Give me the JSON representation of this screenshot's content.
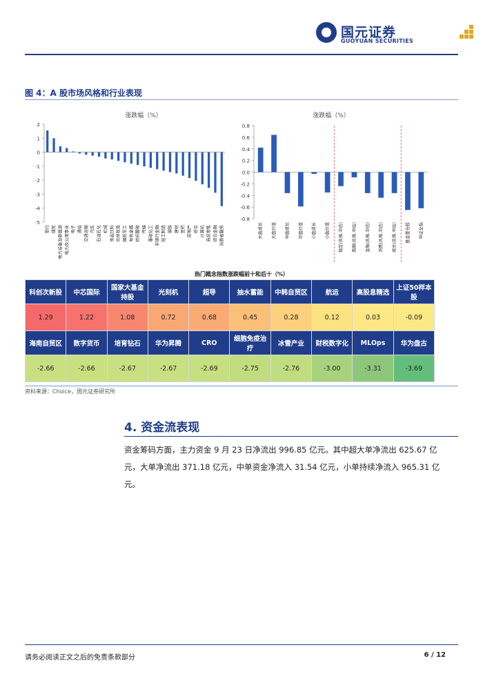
{
  "header": {
    "company_name": "国元证券",
    "company_name_en": "GUOYUAN SECURITIES"
  },
  "figure": {
    "title": "图 4：A 股市场风格和行业表现"
  },
  "chart_data": [
    {
      "type": "bar",
      "title": "涨跌幅（%）",
      "ylim": [
        -5,
        2
      ],
      "yticks": [
        2,
        1,
        0,
        -1,
        -2,
        -3,
        -4,
        -5
      ],
      "categories": [
        "银行",
        "煤炭",
        "电力设备及新能源",
        "电力及公用事业",
        "电子",
        "通信",
        "交通运输",
        "汽车",
        "石油石化",
        "机械",
        "食品饮料",
        "农林牧渔",
        "国防军工",
        "有色金属",
        "纺织服装",
        "传媒",
        "基础化工",
        "非银行金融",
        "轻工制造",
        "钢铁",
        "建材",
        "医药",
        "房地产",
        "综合",
        "计算机",
        "商贸零售",
        "综合金融",
        "消费者服务"
      ],
      "values": [
        1.55,
        1.0,
        0.42,
        0.3,
        0.05,
        -0.1,
        -0.18,
        -0.25,
        -0.32,
        -0.45,
        -0.52,
        -0.62,
        -0.72,
        -0.82,
        -0.92,
        -1.02,
        -1.12,
        -1.22,
        -1.32,
        -1.42,
        -1.52,
        -1.68,
        -1.85,
        -2.05,
        -2.3,
        -2.55,
        -2.9,
        -3.85
      ]
    },
    {
      "type": "bar",
      "title": "涨跌幅（%）",
      "ylim": [
        -0.8,
        0.8
      ],
      "yticks": [
        0.8,
        0.6,
        0.4,
        0.2,
        0.0,
        -0.2,
        -0.4,
        -0.6,
        -0.8
      ],
      "categories": [
        "大盘成长",
        "大盘价值",
        "中盘成长",
        "中盘价值",
        "小盘成长",
        "小盘价值",
        "稳定(风格.中信)",
        "周期(风格.中信)",
        "金融(风格.中信)",
        "消费(风格.中信)",
        "成长(风格.中信)",
        "基金重仓股",
        "中证全指"
      ],
      "values": [
        0.42,
        0.64,
        -0.36,
        -0.59,
        -0.03,
        -0.35,
        -0.24,
        -0.09,
        -0.36,
        -0.44,
        -0.36,
        -0.65,
        -0.62
      ],
      "dividers_after": [
        5,
        10
      ]
    }
  ],
  "table": {
    "title": "热门概念指数涨跌幅前十和后十（%）",
    "top_names": [
      "科创次新股",
      "中芯国际",
      "国家大基金持股",
      "光刻机",
      "超导",
      "抽水蓄能",
      "中韩自贸区",
      "航运",
      "高股息精选",
      "上证50样本股"
    ],
    "top_values": [
      "1.29",
      "1.22",
      "1.08",
      "0.72",
      "0.68",
      "0.45",
      "0.28",
      "0.12",
      "0.03",
      "-0.09"
    ],
    "top_colors": [
      "#f5696b",
      "#f6726c",
      "#f7876e",
      "#f9a874",
      "#faab74",
      "#fbbf78",
      "#fcd07c",
      "#fde282",
      "#fee885",
      "#fbea84"
    ],
    "bottom_names": [
      "海南自贸区",
      "数字货币",
      "培育钻石",
      "华为昇腾",
      "CRO",
      "细胞免疫治疗",
      "冰雪产业",
      "财税数字化",
      "MLOps",
      "华为盘古"
    ],
    "bottom_values": [
      "-2.66",
      "-2.66",
      "-2.67",
      "-2.67",
      "-2.69",
      "-2.75",
      "-2.76",
      "-3.00",
      "-3.31",
      "-3.69"
    ],
    "bottom_colors": [
      "#c9e081",
      "#c9e081",
      "#c8e081",
      "#c8e081",
      "#c6df81",
      "#c1dd80",
      "#c0dd80",
      "#a8d37e",
      "#8ec77c",
      "#63be7b"
    ]
  },
  "source": "资料来源：Choice，国元证券研究所",
  "section": {
    "title": "4. 资金流表现",
    "paragraph": "资金筹码方面，主力资金 9 月 23 日净流出 996.85 亿元。其中超大单净流出 625.67 亿元，大单净流出 371.18 亿元，中单资金净流入 31.54 亿元，小单持续净流入 965.31 亿元。"
  },
  "footer": {
    "disclaimer": "请务必阅读正文之后的免责条款部分",
    "page": "6 / 12"
  }
}
